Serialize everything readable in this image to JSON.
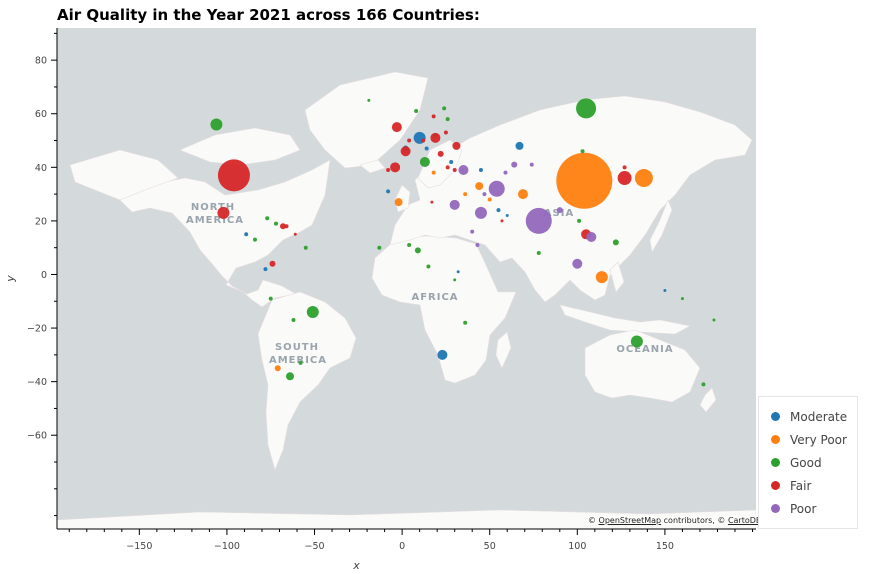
{
  "chart_data": {
    "type": "scatter",
    "title": "Air Quality in the Year 2021 across 166 Countries:",
    "xlabel": "x",
    "ylabel": "y",
    "xlim": [
      -197,
      202
    ],
    "ylim": [
      -95,
      92
    ],
    "xticks": [
      -150,
      -100,
      -50,
      0,
      50,
      100,
      150
    ],
    "yticks": [
      80,
      60,
      40,
      20,
      0,
      -20,
      -40,
      -60
    ],
    "basemap": "OpenStreetMap / CartoDB light",
    "attribution": {
      "prefix": "©",
      "osm": "OpenStreetMap",
      "middle": "contributors, ©",
      "carto": "CartoDB"
    },
    "region_labels": [
      "NORTH",
      "AMERICA",
      "ASIA",
      "AFRICA",
      "SOUTH",
      "AMERICA",
      "OCEANIA"
    ],
    "legend_position": "bottom-right",
    "series": [
      {
        "name": "Moderate",
        "color": "#1f77b4",
        "points": [
          {
            "x": 10,
            "y": 51,
            "s": 6
          },
          {
            "x": 67,
            "y": 48,
            "s": 4
          },
          {
            "x": 23,
            "y": -30,
            "s": 5
          },
          {
            "x": 2,
            "y": 47,
            "s": 3
          },
          {
            "x": 19,
            "y": 52,
            "s": 2
          },
          {
            "x": 55,
            "y": 24,
            "s": 2
          },
          {
            "x": 45,
            "y": 39,
            "s": 2
          },
          {
            "x": 28,
            "y": 42,
            "s": 2
          },
          {
            "x": -78,
            "y": 2,
            "s": 2
          },
          {
            "x": -89,
            "y": 15,
            "s": 2
          },
          {
            "x": 32,
            "y": 1,
            "s": 1.5
          },
          {
            "x": 150,
            "y": -6,
            "s": 1.5
          },
          {
            "x": 60,
            "y": 22,
            "s": 1.5
          },
          {
            "x": -8,
            "y": 31,
            "s": 2
          },
          {
            "x": 14,
            "y": 47,
            "s": 2
          }
        ]
      },
      {
        "name": "Very Poor",
        "color": "#ff7f0e",
        "points": [
          {
            "x": 104,
            "y": 35,
            "s": 28
          },
          {
            "x": 138,
            "y": 36,
            "s": 9
          },
          {
            "x": 114,
            "y": -1,
            "s": 6
          },
          {
            "x": 69,
            "y": 30,
            "s": 5
          },
          {
            "x": -2,
            "y": 27,
            "s": 4
          },
          {
            "x": 44,
            "y": 33,
            "s": 4
          },
          {
            "x": -71,
            "y": -35,
            "s": 3
          },
          {
            "x": 18,
            "y": 38,
            "s": 2
          },
          {
            "x": 50,
            "y": 28,
            "s": 2
          },
          {
            "x": 36,
            "y": 30,
            "s": 2
          }
        ]
      },
      {
        "name": "Good",
        "color": "#2ca02c",
        "points": [
          {
            "x": 105,
            "y": 62,
            "s": 10
          },
          {
            "x": -106,
            "y": 56,
            "s": 6
          },
          {
            "x": 134,
            "y": -25,
            "s": 6
          },
          {
            "x": -51,
            "y": -14,
            "s": 6
          },
          {
            "x": 13,
            "y": 42,
            "s": 5
          },
          {
            "x": -64,
            "y": -38,
            "s": 4
          },
          {
            "x": 122,
            "y": 12,
            "s": 3
          },
          {
            "x": 9,
            "y": 9,
            "s": 3
          },
          {
            "x": 172,
            "y": -41,
            "s": 2
          },
          {
            "x": 78,
            "y": 8,
            "s": 2
          },
          {
            "x": 103,
            "y": 46,
            "s": 2
          },
          {
            "x": 8,
            "y": 61,
            "s": 2
          },
          {
            "x": 24,
            "y": 62,
            "s": 2
          },
          {
            "x": 26,
            "y": 58,
            "s": 2
          },
          {
            "x": -19,
            "y": 65,
            "s": 1.5
          },
          {
            "x": -77,
            "y": 21,
            "s": 2
          },
          {
            "x": -55,
            "y": 10,
            "s": 2
          },
          {
            "x": -72,
            "y": 19,
            "s": 2
          },
          {
            "x": -84,
            "y": 13,
            "s": 2
          },
          {
            "x": -75,
            "y": -9,
            "s": 2
          },
          {
            "x": 36,
            "y": -18,
            "s": 2
          },
          {
            "x": 15,
            "y": 3,
            "s": 2
          },
          {
            "x": 160,
            "y": -9,
            "s": 1.5
          },
          {
            "x": 178,
            "y": -17,
            "s": 1.5
          },
          {
            "x": 101,
            "y": 20,
            "s": 2
          },
          {
            "x": -13,
            "y": 10,
            "s": 2
          },
          {
            "x": 30,
            "y": -2,
            "s": 1.5
          },
          {
            "x": -62,
            "y": -17,
            "s": 2
          },
          {
            "x": 4,
            "y": 11,
            "s": 2
          },
          {
            "x": -58,
            "y": -33,
            "s": 2
          }
        ]
      },
      {
        "name": "Fair",
        "color": "#d62728",
        "points": [
          {
            "x": -96,
            "y": 37,
            "s": 16
          },
          {
            "x": -102,
            "y": 23,
            "s": 6
          },
          {
            "x": 127,
            "y": 36,
            "s": 7
          },
          {
            "x": -3,
            "y": 55,
            "s": 5
          },
          {
            "x": -4,
            "y": 40,
            "s": 5
          },
          {
            "x": 19,
            "y": 51,
            "s": 5
          },
          {
            "x": 2,
            "y": 46,
            "s": 5
          },
          {
            "x": 105,
            "y": 15,
            "s": 5
          },
          {
            "x": 31,
            "y": 48,
            "s": 4
          },
          {
            "x": 22,
            "y": 45,
            "s": 3
          },
          {
            "x": -68,
            "y": 18,
            "s": 3
          },
          {
            "x": -74,
            "y": 4,
            "s": 3
          },
          {
            "x": 18,
            "y": 59,
            "s": 2
          },
          {
            "x": 25,
            "y": 53,
            "s": 2
          },
          {
            "x": 12,
            "y": 50,
            "s": 2
          },
          {
            "x": 30,
            "y": 39,
            "s": 2
          },
          {
            "x": 127,
            "y": 40,
            "s": 2
          },
          {
            "x": -8,
            "y": 39,
            "s": 2
          },
          {
            "x": 4,
            "y": 50,
            "s": 2
          },
          {
            "x": 26,
            "y": 40,
            "s": 2
          },
          {
            "x": -66,
            "y": 18,
            "s": 2
          },
          {
            "x": -61,
            "y": 15,
            "s": 1.5
          },
          {
            "x": 17,
            "y": 27,
            "s": 1.5
          },
          {
            "x": 57,
            "y": 20,
            "s": 1.5
          }
        ]
      },
      {
        "name": "Poor",
        "color": "#9467bd",
        "points": [
          {
            "x": 78,
            "y": 20,
            "s": 13
          },
          {
            "x": 54,
            "y": 32,
            "s": 8
          },
          {
            "x": 45,
            "y": 23,
            "s": 6
          },
          {
            "x": 35,
            "y": 39,
            "s": 5
          },
          {
            "x": 100,
            "y": 4,
            "s": 5
          },
          {
            "x": 108,
            "y": 14,
            "s": 5
          },
          {
            "x": 30,
            "y": 26,
            "s": 5
          },
          {
            "x": 64,
            "y": 41,
            "s": 3
          },
          {
            "x": 59,
            "y": 38,
            "s": 2
          },
          {
            "x": 40,
            "y": 16,
            "s": 2
          },
          {
            "x": 90,
            "y": 24,
            "s": 3
          },
          {
            "x": 74,
            "y": 41,
            "s": 2
          },
          {
            "x": 43,
            "y": 11,
            "s": 2
          },
          {
            "x": 47,
            "y": 30,
            "s": 2
          }
        ]
      }
    ]
  },
  "colors": {
    "ocean": "#d4dadc",
    "land": "#fafaf8",
    "borders": "#e8dde0"
  }
}
